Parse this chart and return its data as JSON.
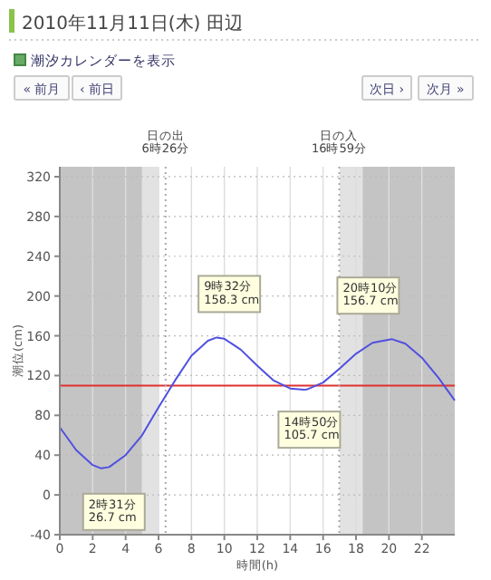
{
  "chart_data": {
    "type": "line",
    "title": "2010年11月11日(木) 田辺",
    "xlabel": "時間(h)",
    "ylabel": "潮位(cm)",
    "x": [
      0,
      1,
      2,
      2.52,
      3,
      4,
      5,
      6,
      7,
      8,
      9,
      9.53,
      10,
      11,
      12,
      13,
      14,
      14.83,
      15,
      16,
      17,
      18,
      19,
      20.17,
      21,
      22,
      23,
      24
    ],
    "series": [
      {
        "color": "#5050e0",
        "values": [
          68,
          45,
          30,
          26.7,
          28,
          40,
          60,
          88,
          115,
          140,
          155,
          158.3,
          157,
          146,
          130,
          115,
          107,
          105.7,
          106,
          113,
          127,
          142,
          153,
          156.7,
          152,
          138,
          118,
          95
        ]
      }
    ],
    "xlim": [
      0,
      24
    ],
    "xticks": [
      0,
      2,
      4,
      6,
      8,
      10,
      12,
      14,
      16,
      18,
      20,
      22
    ],
    "ylim": [
      -40,
      330
    ],
    "yticks": [
      -40,
      0,
      40,
      80,
      120,
      160,
      200,
      240,
      280,
      320
    ],
    "grid": true,
    "marker": "none",
    "line_style": "solid",
    "ref_lines": [
      {
        "axis": "y",
        "value": 110,
        "color": "#e03030"
      },
      {
        "axis": "x",
        "value": 6.43,
        "label": "日の出\n6時26分",
        "color": "#aaaaaa",
        "line_style": "dotted"
      },
      {
        "axis": "x",
        "value": 16.98,
        "label": "日の入\n16時59分",
        "color": "#aaaaaa",
        "line_style": "dotted"
      }
    ],
    "bands": [
      {
        "axis": "x",
        "from": 0,
        "to": 5,
        "color": "#c4c4c4"
      },
      {
        "axis": "x",
        "from": 5,
        "to": 6.0,
        "color": "#e2e2e2"
      },
      {
        "axis": "x",
        "from": 17.0,
        "to": 18.4,
        "color": "#e2e2e2"
      },
      {
        "axis": "x",
        "from": 18.4,
        "to": 24,
        "color": "#c4c4c4"
      }
    ],
    "annotations": [
      "潮汐カレンダーを表示",
      "« 前月",
      "‹ 前日",
      "次日 ›",
      "次月 »",
      {
        "text": "2時31分\n26.7 cm",
        "x": 2.52,
        "y": 26.7
      },
      {
        "text": "9時32分\n158.3 cm",
        "x": 9.53,
        "y": 158.3
      },
      {
        "text": "14時50分\n105.7 cm",
        "x": 14.83,
        "y": 105.7
      },
      {
        "text": "20時10分\n156.7 cm",
        "x": 20.17,
        "y": 156.7
      }
    ]
  }
}
